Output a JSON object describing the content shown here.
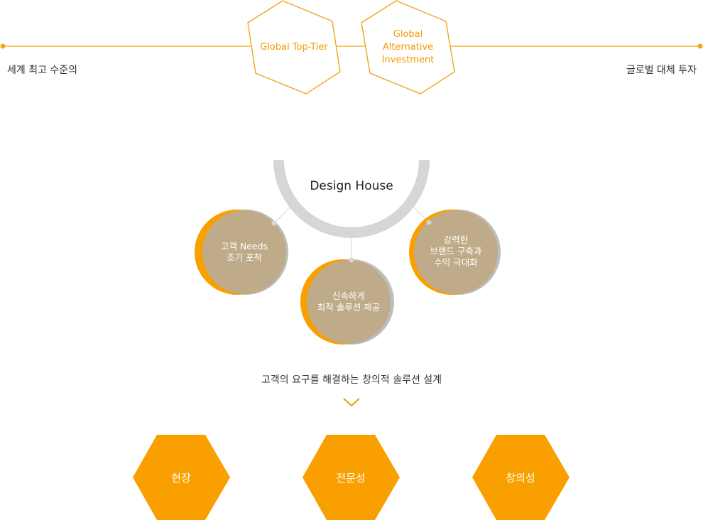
{
  "top": {
    "left_text": "세계 최고 수준의",
    "right_text": "글로벌 대체 투자",
    "hex_left": "Global Top-Tier",
    "hex_right": "Global\nAlternative\nInvestment"
  },
  "house": {
    "title": "Design House",
    "circles": [
      {
        "label": "고객 Needs\n조기 포착"
      },
      {
        "label": "신속하게\n최적 솔루션 제공"
      },
      {
        "label": "강력한\n브랜드 구축과\n수익 극대화"
      }
    ]
  },
  "summary": "고객의 요구를 해결하는 창의적 솔루션 설계",
  "values": [
    "현장",
    "전문성",
    "창의성"
  ],
  "colors": {
    "accent": "#f9a000",
    "hex_outline": "#f2a61a",
    "circle_fill": "#bfab89",
    "ring": "#d6d6d6",
    "shadow": "#bdbdbd"
  }
}
